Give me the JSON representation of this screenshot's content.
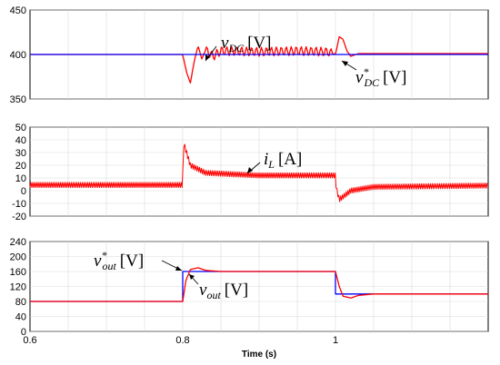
{
  "chart_data": [
    {
      "type": "line",
      "title": "",
      "xlabel": "",
      "ylabel": "",
      "xlim": [
        0.6,
        1.2
      ],
      "ylim": [
        350,
        450
      ],
      "yticks": [
        "450",
        "400",
        "350"
      ],
      "grid": true,
      "series": [
        {
          "name": "v_DC",
          "color": "#ff0000",
          "points": [
            [
              0.6,
              400
            ],
            [
              0.8,
              400
            ],
            [
              0.805,
              380
            ],
            [
              0.81,
              368
            ],
            [
              0.815,
              392
            ],
            [
              0.82,
              410
            ],
            [
              0.825,
              395
            ],
            [
              0.83,
              405
            ],
            [
              0.84,
              398
            ],
            [
              0.85,
              404
            ],
            [
              0.9,
              403
            ],
            [
              0.95,
              404
            ],
            [
              0.99,
              403
            ],
            [
              1.0,
              400
            ],
            [
              1.005,
              420
            ],
            [
              1.01,
              417
            ],
            [
              1.015,
              404
            ],
            [
              1.02,
              398
            ],
            [
              1.03,
              401
            ],
            [
              1.2,
              401
            ]
          ]
        },
        {
          "name": "v*_DC",
          "color": "#0000ff",
          "points": [
            [
              0.6,
              400
            ],
            [
              1.2,
              400
            ]
          ]
        }
      ],
      "annotations": {
        "vdc_main": "v",
        "vdc_sub": "DC",
        "vdc_unit": "[V]",
        "vref_main": "v",
        "vref_star": "*",
        "vref_sub": "DC",
        "vref_unit": "[V]"
      }
    },
    {
      "type": "line",
      "title": "",
      "xlabel": "",
      "ylabel": "",
      "xlim": [
        0.6,
        1.2
      ],
      "ylim": [
        -20,
        50
      ],
      "yticks": [
        "50",
        "40",
        "30",
        "20",
        "10",
        "0",
        "-10",
        "-20"
      ],
      "grid": true,
      "series": [
        {
          "name": "i_L",
          "color": "#ff0000",
          "points": [
            [
              0.6,
              4.5
            ],
            [
              0.8,
              4.5
            ],
            [
              0.801,
              38
            ],
            [
              0.81,
              20
            ],
            [
              0.83,
              14
            ],
            [
              0.9,
              12
            ],
            [
              1.0,
              12
            ],
            [
              1.001,
              2
            ],
            [
              1.005,
              -7
            ],
            [
              1.02,
              0
            ],
            [
              1.05,
              3
            ],
            [
              1.2,
              4
            ]
          ],
          "ripple": 4
        }
      ],
      "annotations": {
        "il_main": "i",
        "il_sub": "L",
        "il_unit": "[A]"
      }
    },
    {
      "type": "line",
      "title": "",
      "xlabel": "Time (s)",
      "ylabel": "",
      "xlim": [
        0.6,
        1.2
      ],
      "ylim": [
        0,
        240
      ],
      "xticks": [
        "0.6",
        "0.8",
        "1"
      ],
      "xtick_values": [
        0.6,
        0.8,
        1.0
      ],
      "yticks": [
        "240",
        "200",
        "160",
        "120",
        "80",
        "40",
        "0"
      ],
      "grid": true,
      "series": [
        {
          "name": "v*_out",
          "color": "#0000ff",
          "points": [
            [
              0.6,
              80
            ],
            [
              0.8,
              80
            ],
            [
              0.8,
              160
            ],
            [
              1.0,
              160
            ],
            [
              1.0,
              100
            ],
            [
              1.2,
              100
            ]
          ]
        },
        {
          "name": "v_out",
          "color": "#ff0000",
          "points": [
            [
              0.6,
              80
            ],
            [
              0.8,
              80
            ],
            [
              0.804,
              135
            ],
            [
              0.81,
              165
            ],
            [
              0.82,
              170
            ],
            [
              0.83,
              163
            ],
            [
              0.85,
              160
            ],
            [
              1.0,
              160
            ],
            [
              1.005,
              120
            ],
            [
              1.01,
              94
            ],
            [
              1.02,
              89
            ],
            [
              1.03,
              96
            ],
            [
              1.05,
              100
            ],
            [
              1.2,
              100
            ]
          ]
        }
      ],
      "annotations": {
        "vref_main": "v",
        "vref_star": "*",
        "vref_sub": "out",
        "vref_unit": "[V]",
        "vout_main": "v",
        "vout_sub": "out",
        "vout_unit": "[V]"
      }
    }
  ]
}
